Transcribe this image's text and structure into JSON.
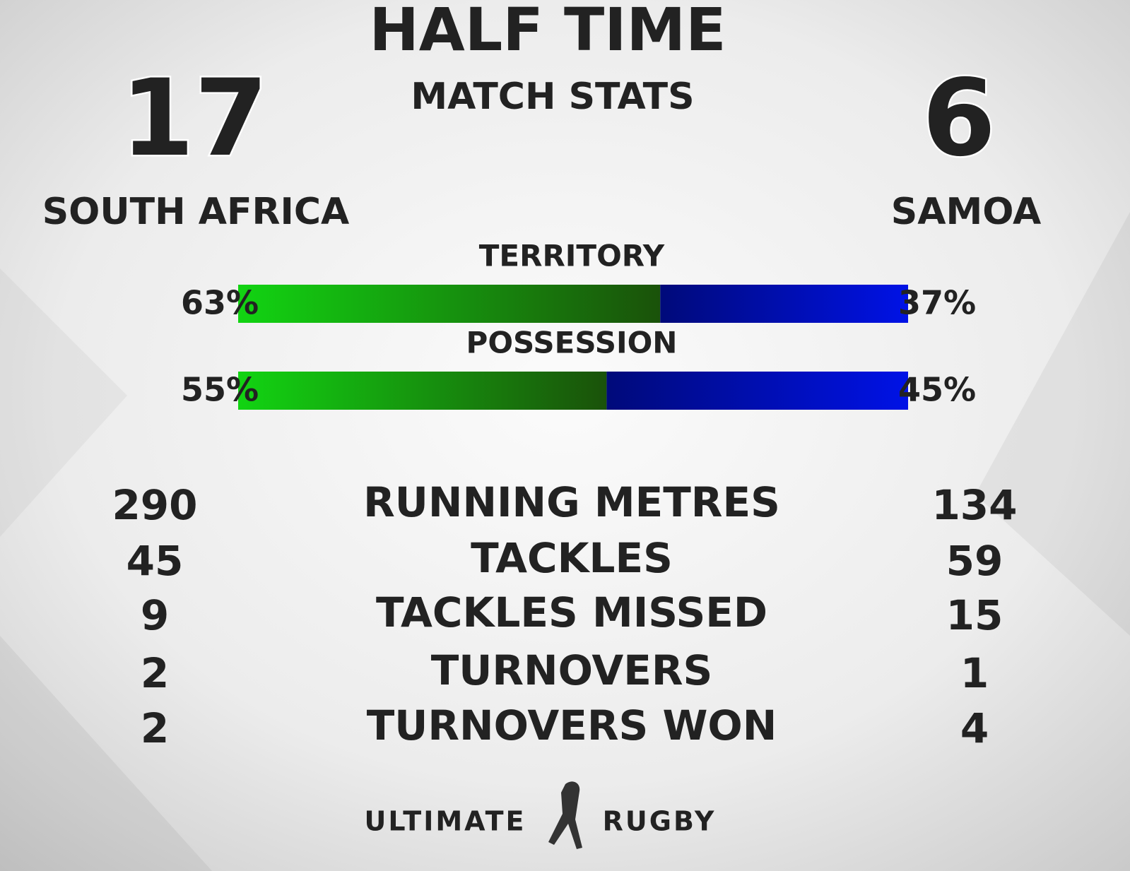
{
  "header": {
    "title": "HALF TIME",
    "subtitle": "MATCH STATS"
  },
  "teams": [
    {
      "name": "SOUTH AFRICA",
      "score": 17
    },
    {
      "name": "SAMOA",
      "score": 6
    }
  ],
  "bars": [
    {
      "label": "TERRITORY",
      "left": {
        "value": 63,
        "label": "63%"
      },
      "right": {
        "value": 37,
        "label": "37%"
      }
    },
    {
      "label": "POSSESSION",
      "left": {
        "value": 55,
        "label": "55%"
      },
      "right": {
        "value": 45,
        "label": "45%"
      }
    }
  ],
  "stats": [
    {
      "label": "RUNNING METRES",
      "left": 290,
      "right": 134
    },
    {
      "label": "TACKLES",
      "left": 45,
      "right": 59
    },
    {
      "label": "TACKLES MISSED",
      "left": 9,
      "right": 15
    },
    {
      "label": "TURNOVERS",
      "left": 2,
      "right": 1
    },
    {
      "label": "TURNOVERS WON",
      "left": 2,
      "right": 4
    }
  ],
  "logo": {
    "left": "ULTIMATE",
    "right": "RUGBY"
  }
}
